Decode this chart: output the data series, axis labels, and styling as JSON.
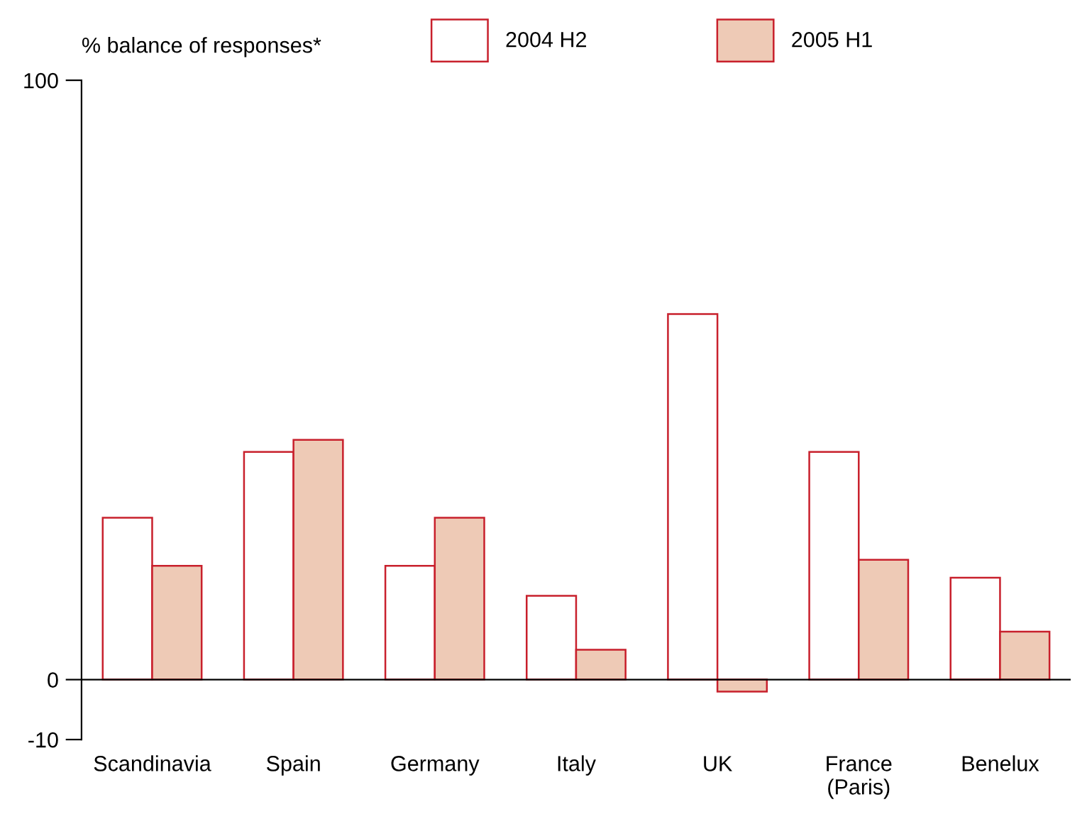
{
  "chart_data": {
    "type": "bar",
    "ylabel": "% balance of responses*",
    "categories": [
      "Scandinavia",
      "Spain",
      "Germany",
      "Italy",
      "UK",
      "France\n(Paris)",
      "Benelux"
    ],
    "series": [
      {
        "name": "2004 H2",
        "color": "#ffffff",
        "values": [
          27,
          38,
          19,
          14,
          61,
          38,
          17
        ]
      },
      {
        "name": "2005 H1",
        "color": "#eecab6",
        "values": [
          19,
          40,
          27,
          5,
          -2,
          20,
          8
        ]
      }
    ],
    "ylim": [
      -10,
      100
    ],
    "yticks": [
      -10,
      0,
      100
    ],
    "ref_lines": [
      {
        "axis": "y",
        "value": 0,
        "color": "#000000"
      }
    ],
    "grid": false,
    "legend": "top"
  }
}
